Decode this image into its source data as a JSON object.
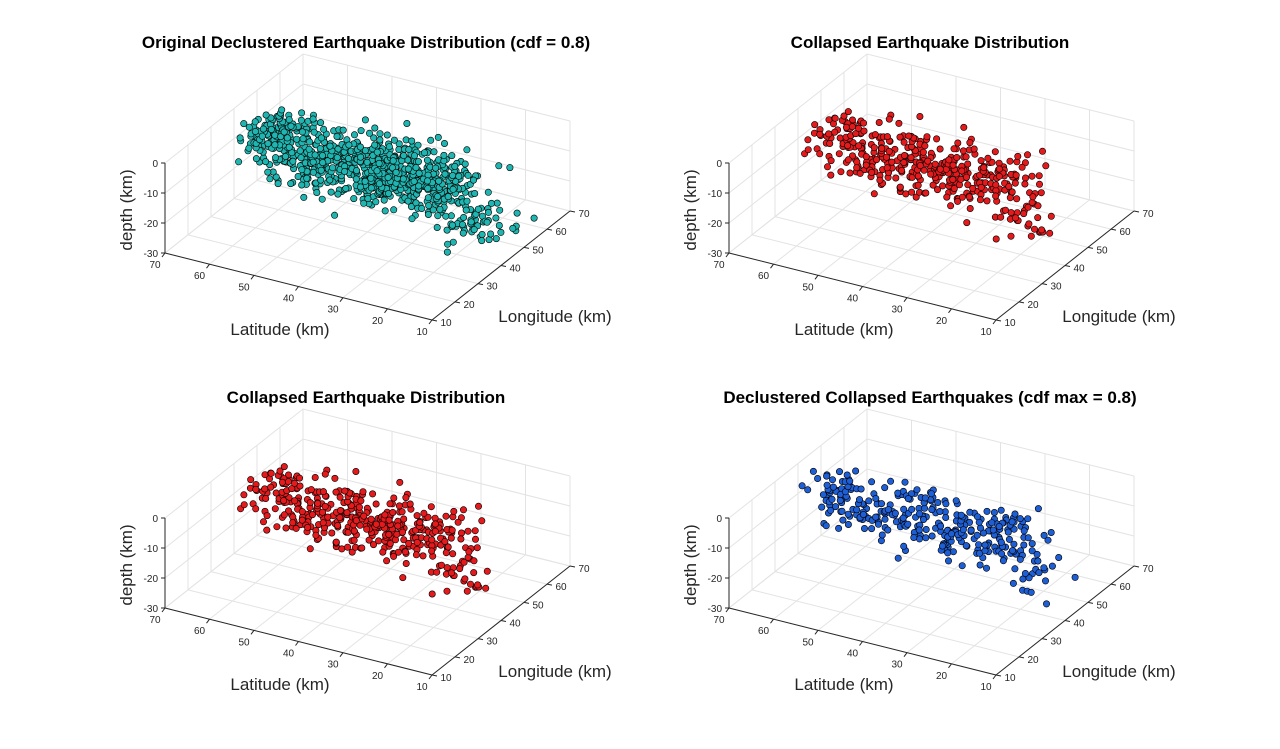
{
  "chart_data": [
    {
      "type": "scatter",
      "title": "Original Declustered Earthquake Distribution (cdf = 0.8)",
      "xlabel": "Latitude (km)",
      "ylabel": "Longitude (km)",
      "zlabel": "depth (km)",
      "xlim": [
        10,
        70
      ],
      "ylim": [
        10,
        70
      ],
      "zlim": [
        -30,
        0
      ],
      "xticks": [
        10,
        20,
        30,
        40,
        50,
        60,
        70
      ],
      "yticks": [
        10,
        20,
        30,
        40,
        50,
        60,
        70
      ],
      "zticks": [
        -30,
        -20,
        -10,
        0
      ],
      "grid": true,
      "marker_color": "#1fb5b0",
      "marker_edge_color": "#000000",
      "point_count": 900
    },
    {
      "type": "scatter",
      "title": "Collapsed Earthquake Distribution",
      "xlabel": "Latitude (km)",
      "ylabel": "Longitude (km)",
      "zlabel": "depth (km)",
      "xlim": [
        10,
        70
      ],
      "ylim": [
        10,
        70
      ],
      "zlim": [
        -30,
        0
      ],
      "xticks": [
        10,
        20,
        30,
        40,
        50,
        60,
        70
      ],
      "yticks": [
        10,
        20,
        30,
        40,
        50,
        60,
        70
      ],
      "zticks": [
        -30,
        -20,
        -10,
        0
      ],
      "grid": true,
      "marker_color": "#e41a1c",
      "marker_edge_color": "#000000",
      "point_count": 420
    },
    {
      "type": "scatter",
      "title": "Collapsed Earthquake Distribution",
      "xlabel": "Latitude (km)",
      "ylabel": "Longitude (km)",
      "zlabel": "depth (km)",
      "xlim": [
        10,
        70
      ],
      "ylim": [
        10,
        70
      ],
      "zlim": [
        -30,
        0
      ],
      "xticks": [
        10,
        20,
        30,
        40,
        50,
        60,
        70
      ],
      "yticks": [
        10,
        20,
        30,
        40,
        50,
        60,
        70
      ],
      "zticks": [
        -30,
        -20,
        -10,
        0
      ],
      "grid": true,
      "marker_color": "#e41a1c",
      "marker_edge_color": "#000000",
      "point_count": 420
    },
    {
      "type": "scatter",
      "title": "Declustered Collapsed Earthquakes (cdf max = 0.8)",
      "xlabel": "Latitude (km)",
      "ylabel": "Longitude (km)",
      "zlabel": "depth (km)",
      "xlim": [
        10,
        70
      ],
      "ylim": [
        10,
        70
      ],
      "zlim": [
        -30,
        0
      ],
      "xticks": [
        10,
        20,
        30,
        40,
        50,
        60,
        70
      ],
      "yticks": [
        10,
        20,
        30,
        40,
        50,
        60,
        70
      ],
      "zticks": [
        -30,
        -20,
        -10,
        0
      ],
      "grid": true,
      "marker_color": "#1f5fd6",
      "marker_edge_color": "#000000",
      "point_count": 330
    }
  ]
}
